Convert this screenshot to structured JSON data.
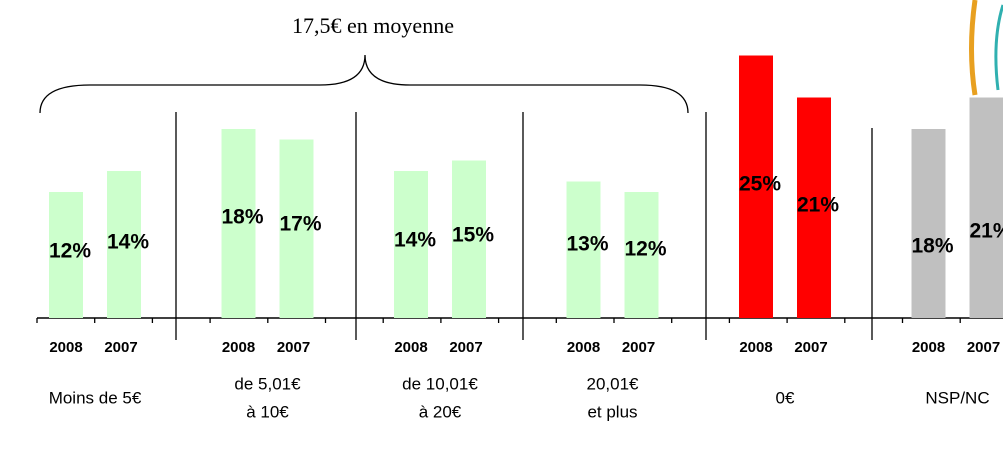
{
  "chart_data": {
    "type": "bar",
    "annotation": "17,5€ en moyenne",
    "categories": [
      [
        "Moins de 5€"
      ],
      [
        "de 5,01€",
        "à 10€"
      ],
      [
        "de 10,01€",
        "à 20€"
      ],
      [
        "20,01€",
        "et plus"
      ],
      [
        "0€"
      ],
      [
        "NSP/NC"
      ]
    ],
    "colors": [
      "#ccffcc",
      "#ccffcc",
      "#ccffcc",
      "#ccffcc",
      "#ff0000",
      "#c0c0c0"
    ],
    "series": [
      {
        "name": "2008",
        "values": [
          12,
          18,
          14,
          13,
          25,
          18
        ],
        "value_labels": [
          "12%",
          "18%",
          "14%",
          "13%",
          "25%",
          "18%"
        ]
      },
      {
        "name": "2007",
        "values": [
          14,
          17,
          15,
          12,
          21,
          21
        ],
        "value_labels": [
          "14%",
          "17%",
          "15%",
          "12%",
          "21%",
          "21%"
        ]
      }
    ]
  }
}
